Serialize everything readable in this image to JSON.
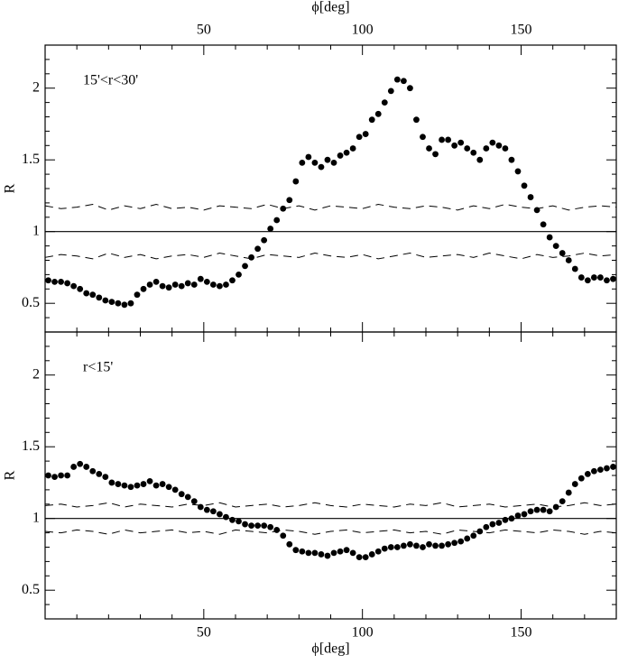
{
  "chart_data": [
    {
      "type": "scatter",
      "label": "15'<r<30'",
      "xlabel": "ϕ[deg]",
      "ylabel": "R",
      "xaxis_side": "top",
      "xlim": [
        0,
        180
      ],
      "ylim": [
        0.3,
        2.3
      ],
      "xticks": [
        50,
        100,
        150
      ],
      "yticks": [
        0.5,
        1,
        1.5,
        2
      ],
      "xminorticks": [
        10,
        20,
        30,
        40,
        60,
        70,
        80,
        90,
        110,
        120,
        130,
        140,
        160,
        170
      ],
      "yminorticks": [
        0.4,
        0.6,
        0.7,
        0.8,
        0.9,
        1.1,
        1.2,
        1.3,
        1.4,
        1.6,
        1.7,
        1.8,
        1.9,
        2.1,
        2.2
      ],
      "hline": 1,
      "color": "#000000",
      "points": {
        "x": [
          1,
          3,
          5,
          7,
          9,
          11,
          13,
          15,
          17,
          19,
          21,
          23,
          25,
          27,
          29,
          31,
          33,
          35,
          37,
          39,
          41,
          43,
          45,
          47,
          49,
          51,
          53,
          55,
          57,
          59,
          61,
          63,
          65,
          67,
          69,
          71,
          73,
          75,
          77,
          79,
          81,
          83,
          85,
          87,
          89,
          91,
          93,
          95,
          97,
          99,
          101,
          103,
          105,
          107,
          109,
          111,
          113,
          115,
          117,
          119,
          121,
          123,
          125,
          127,
          129,
          131,
          133,
          135,
          137,
          139,
          141,
          143,
          145,
          147,
          149,
          151,
          153,
          155,
          157,
          159,
          161,
          163,
          165,
          167,
          169,
          171,
          173,
          175,
          177,
          179
        ],
        "values": [
          0.66,
          0.65,
          0.65,
          0.64,
          0.62,
          0.6,
          0.57,
          0.56,
          0.54,
          0.52,
          0.51,
          0.5,
          0.49,
          0.5,
          0.56,
          0.6,
          0.63,
          0.65,
          0.62,
          0.61,
          0.63,
          0.62,
          0.64,
          0.63,
          0.67,
          0.65,
          0.63,
          0.62,
          0.63,
          0.66,
          0.7,
          0.76,
          0.82,
          0.88,
          0.94,
          1.02,
          1.08,
          1.16,
          1.22,
          1.35,
          1.48,
          1.52,
          1.48,
          1.45,
          1.5,
          1.48,
          1.53,
          1.55,
          1.58,
          1.66,
          1.68,
          1.78,
          1.82,
          1.9,
          1.98,
          2.06,
          2.05,
          2.0,
          1.78,
          1.66,
          1.58,
          1.54,
          1.64,
          1.64,
          1.6,
          1.62,
          1.58,
          1.55,
          1.5,
          1.58,
          1.62,
          1.6,
          1.58,
          1.5,
          1.42,
          1.32,
          1.24,
          1.15,
          1.05,
          0.96,
          0.9,
          0.85,
          0.8,
          0.74,
          0.68,
          0.66,
          0.68,
          0.68,
          0.66,
          0.67
        ]
      },
      "bands": [
        {
          "x": [
            0,
            5,
            10,
            15,
            20,
            25,
            30,
            35,
            40,
            45,
            50,
            55,
            60,
            65,
            70,
            75,
            80,
            85,
            90,
            95,
            100,
            105,
            110,
            115,
            120,
            125,
            130,
            135,
            140,
            145,
            150,
            155,
            160,
            165,
            170,
            175,
            180
          ],
          "values": [
            1.18,
            1.16,
            1.17,
            1.19,
            1.15,
            1.18,
            1.16,
            1.19,
            1.16,
            1.17,
            1.15,
            1.18,
            1.17,
            1.16,
            1.19,
            1.16,
            1.18,
            1.15,
            1.18,
            1.17,
            1.16,
            1.19,
            1.17,
            1.16,
            1.18,
            1.17,
            1.15,
            1.18,
            1.16,
            1.19,
            1.17,
            1.16,
            1.18,
            1.15,
            1.17,
            1.18,
            1.17
          ]
        },
        {
          "x": [
            0,
            5,
            10,
            15,
            20,
            25,
            30,
            35,
            40,
            45,
            50,
            55,
            60,
            65,
            70,
            75,
            80,
            85,
            90,
            95,
            100,
            105,
            110,
            115,
            120,
            125,
            130,
            135,
            140,
            145,
            150,
            155,
            160,
            165,
            170,
            175,
            180
          ],
          "values": [
            0.82,
            0.84,
            0.83,
            0.81,
            0.85,
            0.82,
            0.84,
            0.81,
            0.83,
            0.84,
            0.82,
            0.85,
            0.83,
            0.81,
            0.84,
            0.83,
            0.82,
            0.85,
            0.83,
            0.82,
            0.84,
            0.81,
            0.83,
            0.85,
            0.82,
            0.83,
            0.84,
            0.82,
            0.85,
            0.83,
            0.81,
            0.84,
            0.82,
            0.83,
            0.85,
            0.83,
            0.84
          ]
        }
      ]
    },
    {
      "type": "scatter",
      "label": "r<15'",
      "xlabel": "ϕ[deg]",
      "ylabel": "R",
      "xaxis_side": "bottom",
      "xlim": [
        0,
        180
      ],
      "ylim": [
        0.3,
        2.3
      ],
      "xticks": [
        50,
        100,
        150
      ],
      "yticks": [
        0.5,
        1,
        1.5,
        2
      ],
      "xminorticks": [
        10,
        20,
        30,
        40,
        60,
        70,
        80,
        90,
        110,
        120,
        130,
        140,
        160,
        170
      ],
      "yminorticks": [
        0.4,
        0.6,
        0.7,
        0.8,
        0.9,
        1.1,
        1.2,
        1.3,
        1.4,
        1.6,
        1.7,
        1.8,
        1.9,
        2.1,
        2.2
      ],
      "hline": 1,
      "color": "#000000",
      "points": {
        "x": [
          1,
          3,
          5,
          7,
          9,
          11,
          13,
          15,
          17,
          19,
          21,
          23,
          25,
          27,
          29,
          31,
          33,
          35,
          37,
          39,
          41,
          43,
          45,
          47,
          49,
          51,
          53,
          55,
          57,
          59,
          61,
          63,
          65,
          67,
          69,
          71,
          73,
          75,
          77,
          79,
          81,
          83,
          85,
          87,
          89,
          91,
          93,
          95,
          97,
          99,
          101,
          103,
          105,
          107,
          109,
          111,
          113,
          115,
          117,
          119,
          121,
          123,
          125,
          127,
          129,
          131,
          133,
          135,
          137,
          139,
          141,
          143,
          145,
          147,
          149,
          151,
          153,
          155,
          157,
          159,
          161,
          163,
          165,
          167,
          169,
          171,
          173,
          175,
          177,
          179
        ],
        "values": [
          1.3,
          1.29,
          1.3,
          1.3,
          1.36,
          1.38,
          1.36,
          1.33,
          1.31,
          1.29,
          1.25,
          1.24,
          1.23,
          1.22,
          1.23,
          1.24,
          1.26,
          1.23,
          1.24,
          1.22,
          1.2,
          1.17,
          1.15,
          1.12,
          1.08,
          1.06,
          1.05,
          1.03,
          1.01,
          0.99,
          0.98,
          0.96,
          0.95,
          0.95,
          0.95,
          0.94,
          0.92,
          0.88,
          0.82,
          0.78,
          0.77,
          0.76,
          0.76,
          0.75,
          0.74,
          0.76,
          0.77,
          0.78,
          0.76,
          0.73,
          0.73,
          0.75,
          0.77,
          0.79,
          0.8,
          0.8,
          0.81,
          0.82,
          0.81,
          0.8,
          0.82,
          0.81,
          0.81,
          0.82,
          0.83,
          0.84,
          0.86,
          0.88,
          0.91,
          0.94,
          0.96,
          0.97,
          0.99,
          1.0,
          1.02,
          1.03,
          1.05,
          1.06,
          1.06,
          1.05,
          1.08,
          1.12,
          1.18,
          1.24,
          1.28,
          1.31,
          1.33,
          1.34,
          1.35,
          1.36
        ]
      },
      "bands": [
        {
          "x": [
            0,
            5,
            10,
            15,
            20,
            25,
            30,
            35,
            40,
            45,
            50,
            55,
            60,
            65,
            70,
            75,
            80,
            85,
            90,
            95,
            100,
            105,
            110,
            115,
            120,
            125,
            130,
            135,
            140,
            145,
            150,
            155,
            160,
            165,
            170,
            175,
            180
          ],
          "values": [
            1.09,
            1.1,
            1.08,
            1.09,
            1.11,
            1.08,
            1.1,
            1.09,
            1.08,
            1.1,
            1.09,
            1.11,
            1.08,
            1.09,
            1.1,
            1.08,
            1.09,
            1.11,
            1.09,
            1.08,
            1.1,
            1.09,
            1.08,
            1.1,
            1.09,
            1.11,
            1.08,
            1.09,
            1.1,
            1.08,
            1.09,
            1.1,
            1.08,
            1.09,
            1.11,
            1.09,
            1.1
          ]
        },
        {
          "x": [
            0,
            5,
            10,
            15,
            20,
            25,
            30,
            35,
            40,
            45,
            50,
            55,
            60,
            65,
            70,
            75,
            80,
            85,
            90,
            95,
            100,
            105,
            110,
            115,
            120,
            125,
            130,
            135,
            140,
            145,
            150,
            155,
            160,
            165,
            170,
            175,
            180
          ],
          "values": [
            0.91,
            0.9,
            0.92,
            0.91,
            0.89,
            0.92,
            0.9,
            0.91,
            0.92,
            0.9,
            0.91,
            0.89,
            0.92,
            0.91,
            0.9,
            0.92,
            0.91,
            0.89,
            0.91,
            0.92,
            0.9,
            0.91,
            0.92,
            0.9,
            0.91,
            0.89,
            0.92,
            0.91,
            0.9,
            0.92,
            0.91,
            0.9,
            0.92,
            0.91,
            0.89,
            0.91,
            0.9
          ]
        }
      ]
    }
  ]
}
